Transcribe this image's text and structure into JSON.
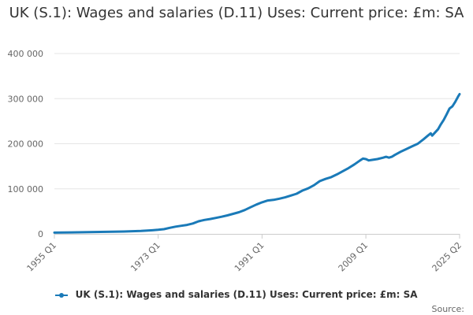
{
  "chart_data": {
    "type": "line",
    "title": "UK (S.1): Wages and salaries (D.11) Uses: Current price: £m: SA",
    "xlabel": "",
    "ylabel": "",
    "ylim": [
      0,
      400000
    ],
    "y_ticks": [
      {
        "value": 0,
        "label": "0"
      },
      {
        "value": 100000,
        "label": "100 000"
      },
      {
        "value": 200000,
        "label": "200 000"
      },
      {
        "value": 300000,
        "label": "300 000"
      },
      {
        "value": 400000,
        "label": "400 000"
      }
    ],
    "x_range": [
      1955.0,
      2025.25
    ],
    "x_ticks": [
      {
        "value": 1955.0,
        "label": "1955 Q1"
      },
      {
        "value": 1973.0,
        "label": "1973 Q1"
      },
      {
        "value": 1991.0,
        "label": "1991 Q1"
      },
      {
        "value": 2009.0,
        "label": "2009 Q1"
      },
      {
        "value": 2025.25,
        "label": "2025 Q2"
      }
    ],
    "grid": true,
    "series": [
      {
        "name": "UK (S.1): Wages and salaries (D.11) Uses: Current price: £m: SA",
        "color": "#1a7ab8",
        "points": [
          [
            1955.0,
            2800
          ],
          [
            1958.0,
            3300
          ],
          [
            1961.0,
            3800
          ],
          [
            1964.0,
            4500
          ],
          [
            1967.0,
            5300
          ],
          [
            1970.0,
            6500
          ],
          [
            1972.0,
            8000
          ],
          [
            1973.0,
            9000
          ],
          [
            1974.0,
            10500
          ],
          [
            1975.0,
            13500
          ],
          [
            1976.0,
            16000
          ],
          [
            1977.0,
            18000
          ],
          [
            1978.0,
            20000
          ],
          [
            1979.0,
            23000
          ],
          [
            1980.0,
            28000
          ],
          [
            1981.0,
            31000
          ],
          [
            1982.0,
            33000
          ],
          [
            1983.0,
            35500
          ],
          [
            1984.0,
            38000
          ],
          [
            1985.0,
            41000
          ],
          [
            1986.0,
            44500
          ],
          [
            1987.0,
            48000
          ],
          [
            1988.0,
            53000
          ],
          [
            1989.0,
            59000
          ],
          [
            1990.0,
            65000
          ],
          [
            1991.0,
            70000
          ],
          [
            1992.0,
            74000
          ],
          [
            1993.0,
            75500
          ],
          [
            1994.0,
            78000
          ],
          [
            1995.0,
            81000
          ],
          [
            1996.0,
            85000
          ],
          [
            1997.0,
            89000
          ],
          [
            1998.0,
            96000
          ],
          [
            1999.0,
            101000
          ],
          [
            2000.0,
            108000
          ],
          [
            2001.0,
            117000
          ],
          [
            2002.0,
            122000
          ],
          [
            2003.0,
            126000
          ],
          [
            2004.0,
            132000
          ],
          [
            2005.0,
            139000
          ],
          [
            2006.0,
            146000
          ],
          [
            2007.0,
            154000
          ],
          [
            2008.0,
            163000
          ],
          [
            2008.5,
            167000
          ],
          [
            2009.0,
            166000
          ],
          [
            2009.5,
            163000
          ],
          [
            2010.0,
            164000
          ],
          [
            2011.0,
            166000
          ],
          [
            2012.0,
            169000
          ],
          [
            2012.5,
            171000
          ],
          [
            2013.0,
            169000
          ],
          [
            2013.5,
            171000
          ],
          [
            2014.0,
            175000
          ],
          [
            2015.0,
            182000
          ],
          [
            2016.0,
            188000
          ],
          [
            2017.0,
            194000
          ],
          [
            2018.0,
            200000
          ],
          [
            2019.0,
            210000
          ],
          [
            2019.75,
            218000
          ],
          [
            2020.25,
            223000
          ],
          [
            2020.5,
            218000
          ],
          [
            2021.0,
            225000
          ],
          [
            2021.5,
            232000
          ],
          [
            2022.0,
            243000
          ],
          [
            2022.5,
            253000
          ],
          [
            2023.0,
            265000
          ],
          [
            2023.5,
            278000
          ],
          [
            2024.0,
            283000
          ],
          [
            2024.5,
            293000
          ],
          [
            2025.0,
            305000
          ],
          [
            2025.25,
            310000
          ]
        ]
      }
    ],
    "legend": {
      "label": "UK (S.1): Wages and salaries (D.11) Uses: Current price: £m: SA",
      "placement": "bottom"
    },
    "source_label": "Source:"
  }
}
